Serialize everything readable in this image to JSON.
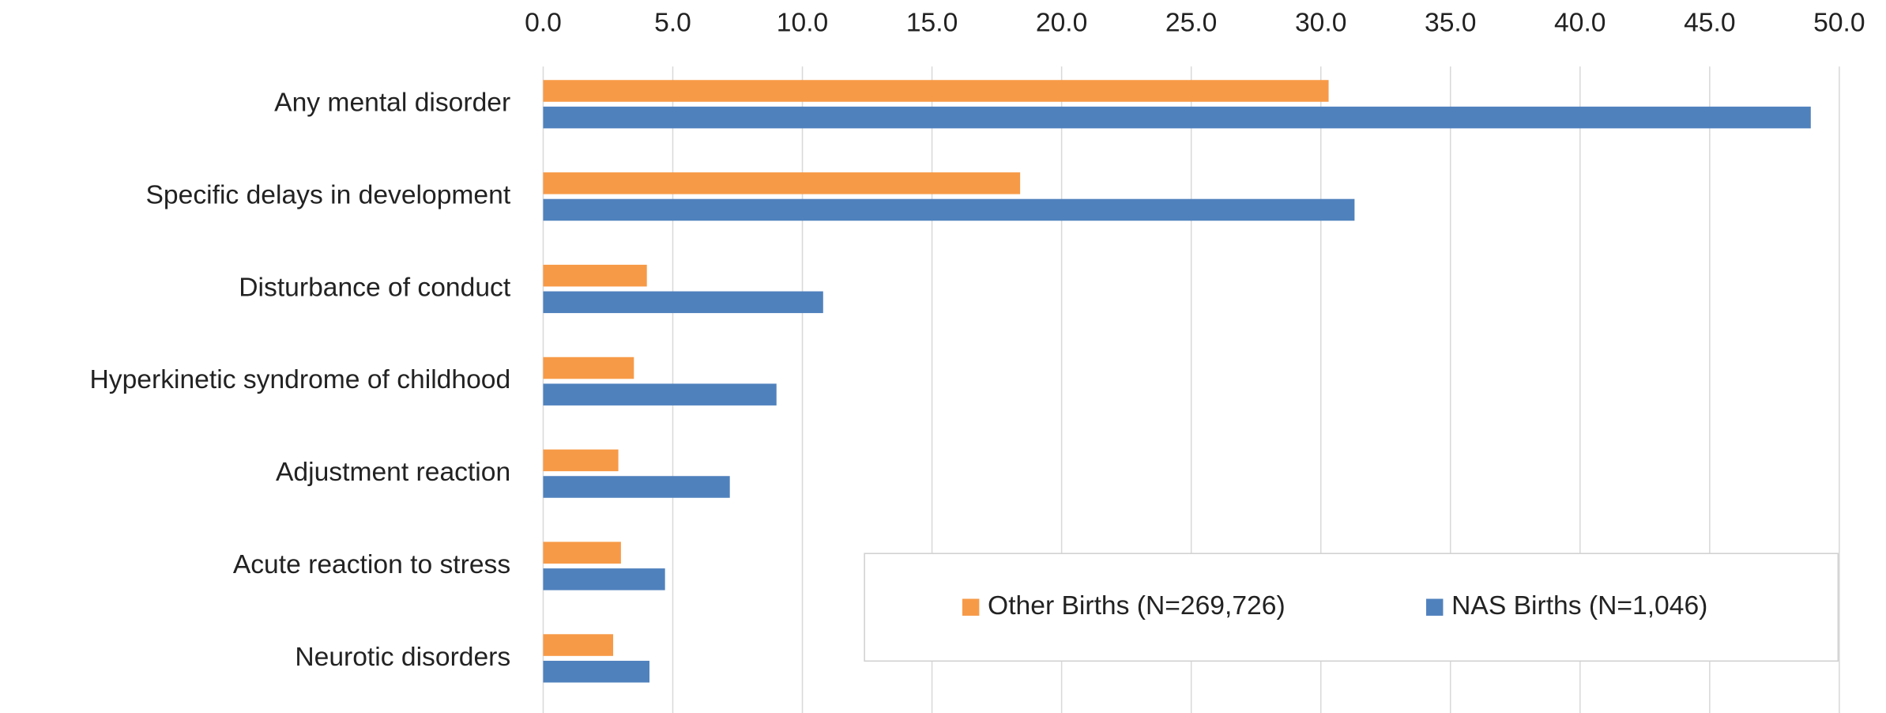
{
  "chart_data": {
    "type": "barh",
    "categories": [
      "Any mental disorder",
      "Specific delays in development",
      "Disturbance of conduct",
      "Hyperkinetic syndrome of childhood",
      "Adjustment reaction",
      "Acute reaction to stress",
      "Neurotic disorders"
    ],
    "series": [
      {
        "name": "Other Births (N=269,726)",
        "color": "#f79a47",
        "values": [
          30.3,
          18.4,
          4.0,
          3.5,
          2.9,
          3.0,
          2.7
        ]
      },
      {
        "name": "NAS Births (N=1,046)",
        "color": "#4f81bd",
        "values": [
          48.9,
          31.3,
          10.8,
          9.0,
          7.2,
          4.7,
          4.1
        ]
      }
    ],
    "xlim": [
      0,
      50
    ],
    "xticks": [
      {
        "value": 0,
        "label": "0.0"
      },
      {
        "value": 5,
        "label": "5.0"
      },
      {
        "value": 10,
        "label": "10.0"
      },
      {
        "value": 15,
        "label": "15.0"
      },
      {
        "value": 20,
        "label": "20.0"
      },
      {
        "value": 25,
        "label": "25.0"
      },
      {
        "value": 30,
        "label": "30.0"
      },
      {
        "value": 35,
        "label": "35.0"
      },
      {
        "value": 40,
        "label": "40.0"
      },
      {
        "value": 45,
        "label": "45.0"
      },
      {
        "value": 50,
        "label": "50.0"
      }
    ],
    "grid": true,
    "legend": "lower right"
  }
}
